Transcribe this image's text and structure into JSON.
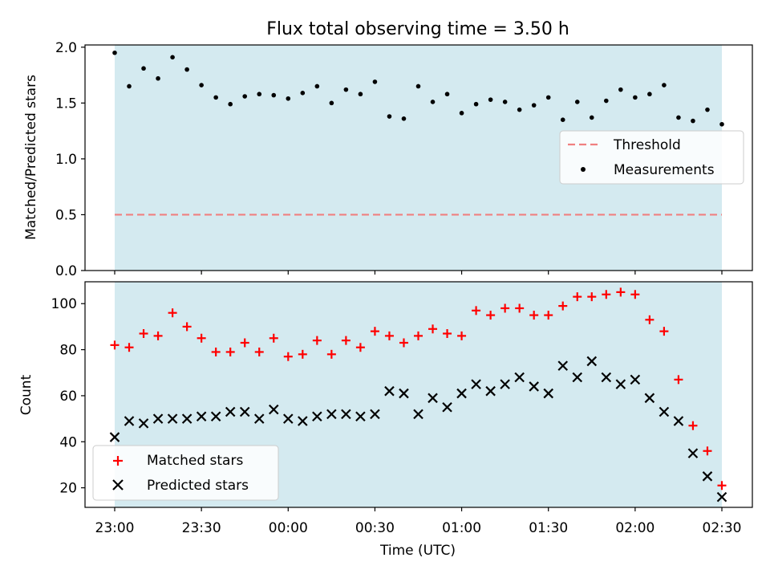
{
  "colors": {
    "shade": "#d4eaf0",
    "threshold": "#f08080",
    "measurement": "#000000",
    "matched": "#ff0000",
    "predicted": "#000000"
  },
  "chart_data": [
    {
      "panel": "top",
      "type": "scatter",
      "title": "Flux total observing time = 3.50 h",
      "xlabel": "",
      "ylabel": "Matched/Predicted stars",
      "ylim": [
        0.0,
        2.02
      ],
      "yticks": [
        "0.0",
        "0.5",
        "1.0",
        "1.5",
        "2.0"
      ],
      "shaded_span": [
        "23:00",
        "02:30"
      ],
      "legend_position": "center-right",
      "threshold": {
        "name": "Threshold",
        "value": 0.5,
        "style": "dashed"
      },
      "series": [
        {
          "name": "Measurements",
          "marker": "dot",
          "x": [
            "23:00",
            "23:05",
            "23:10",
            "23:15",
            "23:20",
            "23:25",
            "23:30",
            "23:35",
            "23:40",
            "23:45",
            "23:50",
            "23:55",
            "00:00",
            "00:05",
            "00:10",
            "00:15",
            "00:20",
            "00:25",
            "00:30",
            "00:35",
            "00:40",
            "00:45",
            "00:50",
            "00:55",
            "01:00",
            "01:05",
            "01:10",
            "01:15",
            "01:20",
            "01:25",
            "01:30",
            "01:35",
            "01:40",
            "01:45",
            "01:50",
            "01:55",
            "02:00",
            "02:05",
            "02:10",
            "02:15",
            "02:20",
            "02:25",
            "02:30"
          ],
          "values": [
            1.95,
            1.65,
            1.81,
            1.72,
            1.91,
            1.8,
            1.66,
            1.55,
            1.49,
            1.56,
            1.58,
            1.57,
            1.54,
            1.59,
            1.65,
            1.5,
            1.62,
            1.58,
            1.69,
            1.38,
            1.36,
            1.65,
            1.51,
            1.58,
            1.41,
            1.49,
            1.53,
            1.51,
            1.44,
            1.48,
            1.55,
            1.35,
            1.51,
            1.37,
            1.52,
            1.62,
            1.55,
            1.58,
            1.66,
            1.37,
            1.34,
            1.44,
            1.31
          ]
        }
      ]
    },
    {
      "panel": "bottom",
      "type": "scatter",
      "title": "",
      "xlabel": "Time (UTC)",
      "ylabel": "Count",
      "ylim": [
        11.5,
        109.5
      ],
      "yticks": [
        "20",
        "40",
        "60",
        "80",
        "100"
      ],
      "xticks": [
        "23:00",
        "23:30",
        "00:00",
        "00:30",
        "01:00",
        "01:30",
        "02:00",
        "02:30"
      ],
      "shaded_span": [
        "23:00",
        "02:30"
      ],
      "legend_position": "lower-left",
      "series": [
        {
          "name": "Matched stars",
          "marker": "plus",
          "x": [
            "23:00",
            "23:05",
            "23:10",
            "23:15",
            "23:20",
            "23:25",
            "23:30",
            "23:35",
            "23:40",
            "23:45",
            "23:50",
            "23:55",
            "00:00",
            "00:05",
            "00:10",
            "00:15",
            "00:20",
            "00:25",
            "00:30",
            "00:35",
            "00:40",
            "00:45",
            "00:50",
            "00:55",
            "01:00",
            "01:05",
            "01:10",
            "01:15",
            "01:20",
            "01:25",
            "01:30",
            "01:35",
            "01:40",
            "01:45",
            "01:50",
            "01:55",
            "02:00",
            "02:05",
            "02:10",
            "02:15",
            "02:20",
            "02:25",
            "02:30"
          ],
          "values": [
            82,
            81,
            87,
            86,
            96,
            90,
            85,
            79,
            79,
            83,
            79,
            85,
            77,
            78,
            84,
            78,
            84,
            81,
            88,
            86,
            83,
            86,
            89,
            87,
            86,
            97,
            95,
            98,
            98,
            95,
            95,
            99,
            103,
            103,
            104,
            105,
            104,
            93,
            88,
            67,
            47,
            36,
            21
          ]
        },
        {
          "name": "Predicted stars",
          "marker": "x",
          "x": [
            "23:00",
            "23:05",
            "23:10",
            "23:15",
            "23:20",
            "23:25",
            "23:30",
            "23:35",
            "23:40",
            "23:45",
            "23:50",
            "23:55",
            "00:00",
            "00:05",
            "00:10",
            "00:15",
            "00:20",
            "00:25",
            "00:30",
            "00:35",
            "00:40",
            "00:45",
            "00:50",
            "00:55",
            "01:00",
            "01:05",
            "01:10",
            "01:15",
            "01:20",
            "01:25",
            "01:30",
            "01:35",
            "01:40",
            "01:45",
            "01:50",
            "01:55",
            "02:00",
            "02:05",
            "02:10",
            "02:15",
            "02:20",
            "02:25",
            "02:30"
          ],
          "values": [
            42,
            49,
            48,
            50,
            50,
            50,
            51,
            51,
            53,
            53,
            50,
            54,
            50,
            49,
            51,
            52,
            52,
            51,
            52,
            62,
            61,
            52,
            59,
            55,
            61,
            65,
            62,
            65,
            68,
            64,
            61,
            73,
            68,
            75,
            68,
            65,
            67,
            59,
            53,
            49,
            35,
            25,
            16
          ]
        }
      ]
    }
  ]
}
